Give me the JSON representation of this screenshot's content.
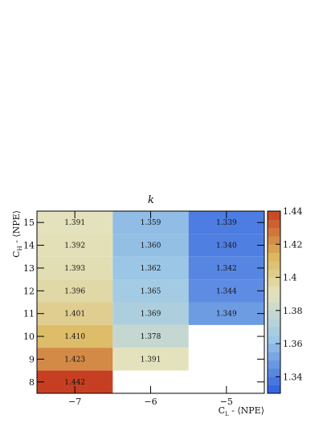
{
  "chart_data": {
    "type": "heatmap",
    "title": "k",
    "xlabel": "C_L - ⟨NPE⟩",
    "ylabel": "C_H - ⟨NPE⟩",
    "x": [
      -7,
      -6,
      -5
    ],
    "y": [
      8,
      9,
      10,
      11,
      12,
      13,
      14,
      15
    ],
    "x_tick_labels": [
      "−7",
      "−6",
      "−5"
    ],
    "y_tick_labels": [
      "8",
      "9",
      "10",
      "11",
      "12",
      "13",
      "14",
      "15"
    ],
    "cells": [
      {
        "x": -7,
        "y": 15,
        "value": 1.391,
        "label": "1.391"
      },
      {
        "x": -6,
        "y": 15,
        "value": 1.359,
        "label": "1.359"
      },
      {
        "x": -5,
        "y": 15,
        "value": 1.339,
        "label": "1.339"
      },
      {
        "x": -7,
        "y": 14,
        "value": 1.392,
        "label": "1.392"
      },
      {
        "x": -6,
        "y": 14,
        "value": 1.36,
        "label": "1.360"
      },
      {
        "x": -5,
        "y": 14,
        "value": 1.34,
        "label": "1.340"
      },
      {
        "x": -7,
        "y": 13,
        "value": 1.393,
        "label": "1.393"
      },
      {
        "x": -6,
        "y": 13,
        "value": 1.362,
        "label": "1.362"
      },
      {
        "x": -5,
        "y": 13,
        "value": 1.342,
        "label": "1.342"
      },
      {
        "x": -7,
        "y": 12,
        "value": 1.396,
        "label": "1.396"
      },
      {
        "x": -6,
        "y": 12,
        "value": 1.365,
        "label": "1.365"
      },
      {
        "x": -5,
        "y": 12,
        "value": 1.344,
        "label": "1.344"
      },
      {
        "x": -7,
        "y": 11,
        "value": 1.401,
        "label": "1.401"
      },
      {
        "x": -6,
        "y": 11,
        "value": 1.369,
        "label": "1.369"
      },
      {
        "x": -5,
        "y": 11,
        "value": 1.349,
        "label": "1.349"
      },
      {
        "x": -7,
        "y": 10,
        "value": 1.41,
        "label": "1.410"
      },
      {
        "x": -6,
        "y": 10,
        "value": 1.378,
        "label": "1.378"
      },
      {
        "x": -7,
        "y": 9,
        "value": 1.423,
        "label": "1.423"
      },
      {
        "x": -6,
        "y": 9,
        "value": 1.391,
        "label": "1.391"
      },
      {
        "x": -7,
        "y": 8,
        "value": 1.442,
        "label": "1.442"
      }
    ],
    "colorbar": {
      "range": [
        1.33,
        1.44
      ],
      "ticks": [
        1.34,
        1.36,
        1.38,
        1.4,
        1.42,
        1.44
      ],
      "tick_labels": [
        "1.34",
        "1.36",
        "1.38",
        "1.4",
        "1.42",
        "1.44"
      ]
    },
    "colors": {
      "low": "#2e5fe0",
      "mid_low": "#9ec9e6",
      "mid": "#e3e3bf",
      "mid_high": "#dcb85e",
      "high": "#c73f22"
    },
    "grid": false
  }
}
